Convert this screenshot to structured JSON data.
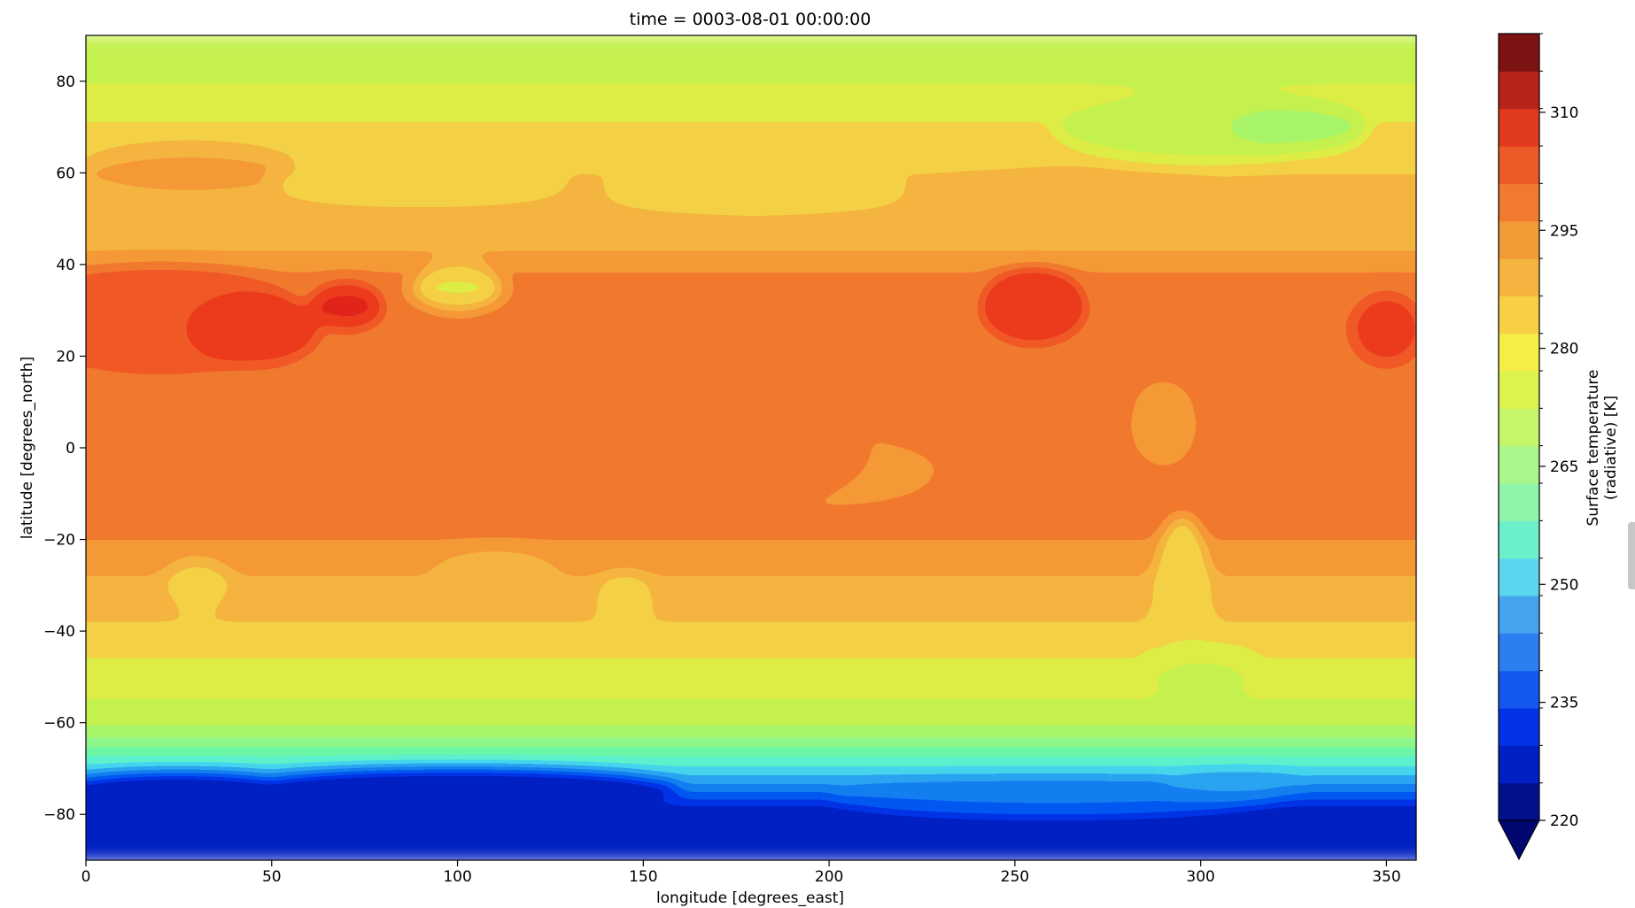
{
  "chart_data": {
    "type": "heatmap",
    "subtype": "filled-contour-map",
    "title": "time = 0003-08-01 00:00:00",
    "xlabel": "longitude [degrees_east]",
    "ylabel": "latitude [degrees_north]",
    "xlim": [
      0,
      358
    ],
    "ylim": [
      -90,
      90
    ],
    "x_ticks": [
      0,
      50,
      100,
      150,
      200,
      250,
      300,
      350
    ],
    "y_ticks": [
      -80,
      -60,
      -40,
      -20,
      0,
      20,
      40,
      60,
      80
    ],
    "colormap": "jet",
    "colorbar": {
      "label_line1": "Surface temperature",
      "label_line2": "(radiative) [K]",
      "min": 220,
      "max": 320,
      "step": 5,
      "ticks": [
        220,
        235,
        250,
        265,
        280,
        295,
        310
      ],
      "extend": "min",
      "colors": [
        "#00118a",
        "#0020c4",
        "#0234e6",
        "#1458f0",
        "#2b7ff0",
        "#44a4f0",
        "#5cd6ee",
        "#6cf0cc",
        "#8ff5a8",
        "#a9f78a",
        "#c5f56a",
        "#ddf24f",
        "#f4ee45",
        "#f7d045",
        "#f4b43f",
        "#f29a36",
        "#f07a2e",
        "#ec5a27",
        "#e13a1e",
        "#b8241a",
        "#7d1213"
      ]
    },
    "field_description": "Surface temperature by latitude and longitude: coldest (about 220 K) over Antarctica south of -70, warm tropics around 295-305 K, hot continental spots above 310 K near 20-40 N, and cool polar north near 270-275 K"
  }
}
